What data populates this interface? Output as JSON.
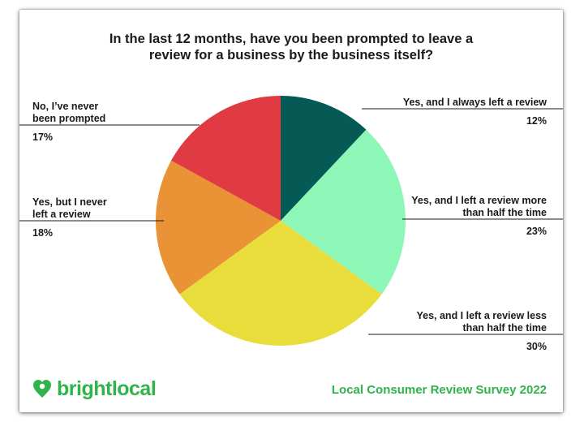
{
  "header": {
    "title_line1": "In the last 12 months, have you been prompted to leave a",
    "title_line2": "review for a business by the business itself?"
  },
  "footer": {
    "brand": "brightlocal",
    "survey": "Local Consumer Review Survey 2022"
  },
  "colors": {
    "brand_green": "#2fb34a"
  },
  "chart_data": {
    "type": "pie",
    "title": "In the last 12 months, have you been prompted to leave a review for a business by the business itself?",
    "slices": [
      {
        "label": "Yes, and I always left a review",
        "lines": [
          "Yes, and I always left a review"
        ],
        "value": 12,
        "display": "12%",
        "color": "#065a55",
        "side": "right"
      },
      {
        "label": "Yes, and I left a review more than half the time",
        "lines": [
          "Yes, and I left a review more",
          "than half the time"
        ],
        "value": 23,
        "display": "23%",
        "color": "#8ef7b7",
        "side": "right"
      },
      {
        "label": "Yes, and I left a review less than half the time",
        "lines": [
          "Yes, and I left a review less",
          "than half the time"
        ],
        "value": 30,
        "display": "30%",
        "color": "#e9dd3c",
        "side": "right"
      },
      {
        "label": "Yes, but I never left a review",
        "lines": [
          "Yes, but I never",
          "left a review"
        ],
        "value": 18,
        "display": "18%",
        "color": "#ea9236",
        "side": "left"
      },
      {
        "label": "No, I've never been prompted",
        "lines": [
          "No, I’ve never",
          "been prompted"
        ],
        "value": 17,
        "display": "17%",
        "color": "#e03a42",
        "side": "left"
      }
    ]
  }
}
